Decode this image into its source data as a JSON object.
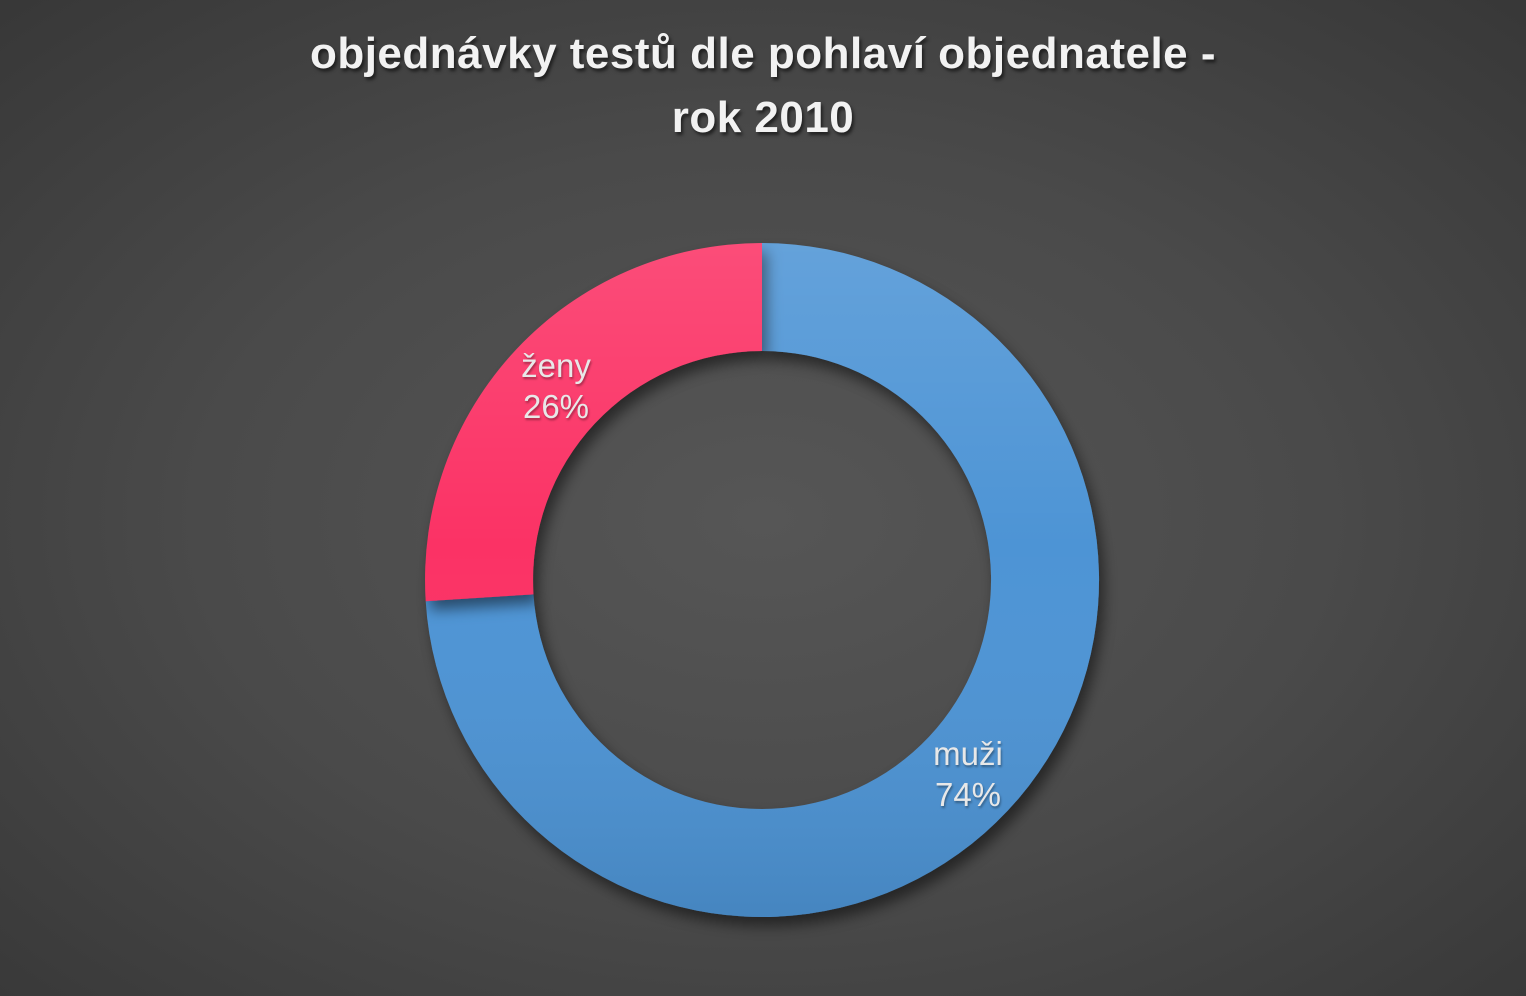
{
  "header": {
    "title_lines": [
      "objednávky testů dle pohlaví objednatele -",
      "rok 2010"
    ]
  },
  "chart_data": {
    "type": "pie",
    "subtype": "donut",
    "title": "objednávky testů dle pohlaví objednatele - rok 2010",
    "hole_ratio": 0.68,
    "start_angle_deg": 0,
    "direction": "clockwise",
    "legend_position": "none",
    "label_position": "inside",
    "title_color": "#F2F2F2",
    "label_color": "#E8E8E8",
    "background_center_color": "#545454",
    "background_edge_color": "#262626",
    "slices": [
      {
        "label": "muži",
        "value": 74,
        "percent_label": "74%",
        "color": "#4E94D5"
      },
      {
        "label": "ženy",
        "value": 26,
        "percent_label": "26%",
        "color": "#FB3365"
      }
    ]
  }
}
